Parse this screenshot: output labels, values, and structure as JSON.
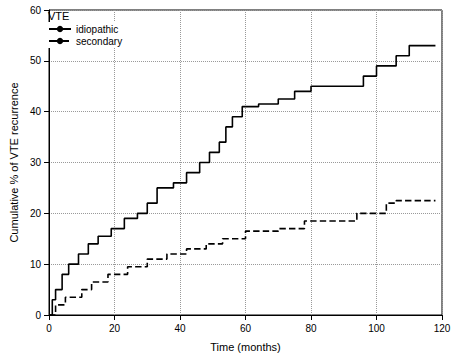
{
  "chart_data": {
    "type": "line",
    "x_label": "Time (months)",
    "y_label": "Cumulative % of VTE recurrence",
    "legend_title": "VTE",
    "legend": "upper left",
    "grid": true,
    "xlim": [
      0,
      120
    ],
    "xticks": [
      0,
      20,
      40,
      60,
      80,
      100,
      120
    ],
    "ylim": [
      0,
      60
    ],
    "yticks": [
      0,
      10,
      20,
      30,
      40,
      50,
      60
    ],
    "series": [
      {
        "name": "idiopathic",
        "color": "#000000",
        "line_style": "solid",
        "x": [
          0,
          1,
          2,
          4,
          6,
          9,
          12,
          15,
          19,
          23,
          27,
          30,
          33,
          38,
          42,
          46,
          49,
          52,
          54,
          56,
          59,
          64,
          70,
          75,
          80,
          90,
          96,
          100,
          106,
          110,
          118
        ],
        "values": [
          0,
          3,
          5,
          8,
          10,
          12,
          14,
          15.5,
          17,
          19,
          20,
          22,
          25,
          26,
          28,
          30,
          32,
          34,
          37,
          39,
          41,
          41.5,
          42.5,
          44,
          45,
          45,
          47,
          49,
          51,
          53,
          53
        ]
      },
      {
        "name": "secondary",
        "color": "#000000",
        "line_style": "dashed",
        "x": [
          0,
          2,
          5,
          10,
          13,
          18,
          24,
          30,
          36,
          42,
          48,
          53,
          60,
          70,
          78,
          94,
          103,
          106,
          118
        ],
        "values": [
          0,
          2,
          3.5,
          5,
          6.5,
          8,
          9.5,
          11,
          12,
          13,
          14,
          15,
          16.5,
          17,
          18.5,
          20,
          22,
          22.5,
          22.5
        ]
      }
    ]
  }
}
